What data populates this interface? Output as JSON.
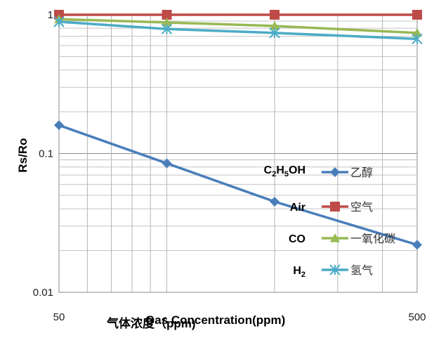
{
  "chart_data": {
    "type": "line",
    "xscale": "log",
    "yscale": "log",
    "x": [
      50,
      100,
      200,
      500
    ],
    "x_tick_labels": [
      "50",
      "500"
    ],
    "y_tick_labels": [
      "0.01",
      "0.1",
      "1"
    ],
    "xlim": [
      50,
      500
    ],
    "ylim": [
      0.01,
      1
    ],
    "ylabel": "Rs/Ro",
    "xlabel": "Gas Concentration(ppm)",
    "xlabel_cn": "气体浓度（ppm)",
    "grid": true,
    "legend_position": "center-right",
    "series": [
      {
        "name": "乙醇",
        "formula": "C2H5OH",
        "color": "#4a7ebb",
        "marker": "diamond",
        "values": [
          0.16,
          0.085,
          0.045,
          0.022
        ]
      },
      {
        "name": "空气",
        "formula": "Air",
        "color": "#be4b48",
        "marker": "square",
        "values": [
          1.0,
          1.0,
          1.0,
          1.0
        ]
      },
      {
        "name": "一氧化碳",
        "formula": "CO",
        "color": "#98b954",
        "marker": "triangle",
        "values": [
          0.93,
          0.88,
          0.83,
          0.74
        ]
      },
      {
        "name": "氢气",
        "formula": "H2",
        "color": "#4bacc6",
        "marker": "star",
        "values": [
          0.89,
          0.79,
          0.74,
          0.67
        ]
      }
    ]
  }
}
